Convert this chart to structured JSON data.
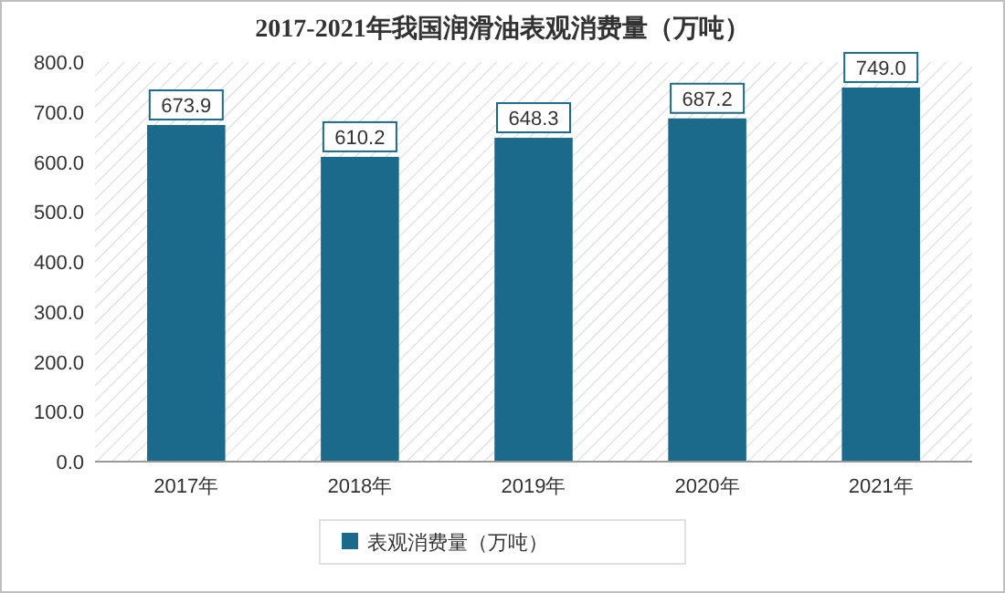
{
  "chart_data": {
    "type": "bar",
    "title": "2017-2021年我国润滑油表观消费量（万吨）",
    "categories": [
      "2017年",
      "2018年",
      "2019年",
      "2020年",
      "2021年"
    ],
    "series": [
      {
        "name": "表观消费量（万吨）",
        "color": "#1b6a8c",
        "values": [
          673.9,
          610.2,
          648.3,
          687.2,
          749.0
        ],
        "value_labels": [
          "673.9",
          "610.2",
          "648.3",
          "687.2",
          "749.0"
        ]
      }
    ],
    "ylim": [
      0,
      800
    ],
    "yticks": [
      {
        "value": 0,
        "label": "0.0"
      },
      {
        "value": 100,
        "label": "100.0"
      },
      {
        "value": 200,
        "label": "200.0"
      },
      {
        "value": 300,
        "label": "300.0"
      },
      {
        "value": 400,
        "label": "400.0"
      },
      {
        "value": 500,
        "label": "500.0"
      },
      {
        "value": 600,
        "label": "600.0"
      },
      {
        "value": 700,
        "label": "700.0"
      },
      {
        "value": 800,
        "label": "800.0"
      }
    ],
    "legend": "bottom",
    "grid": false
  }
}
